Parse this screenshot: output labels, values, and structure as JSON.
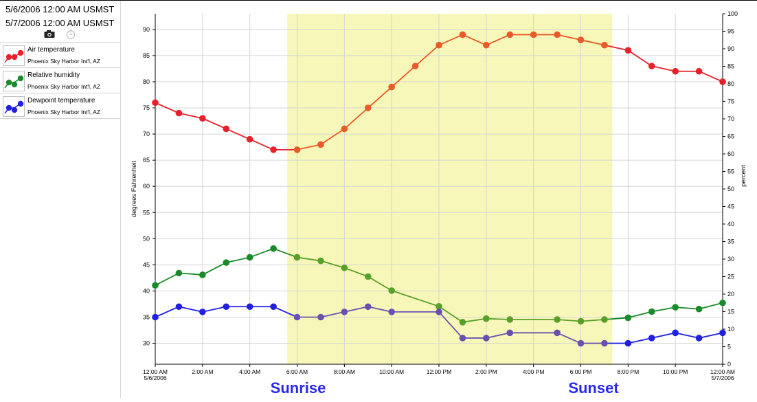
{
  "header": {
    "start_date": "5/6/2006 12:00 AM USMST",
    "end_date": "5/7/2006 12:00 AM USMST"
  },
  "controls": [
    {
      "icon": "camera-icon"
    },
    {
      "icon": "clock-icon"
    }
  ],
  "legend": [
    {
      "name": "Air temperature",
      "station": "Phoenix Sky Harbor Int'l, AZ",
      "color": "#e8202a"
    },
    {
      "name": "Relative humidity",
      "station": "Phoenix Sky Harbor Int'l, AZ",
      "color": "#1a8a2a"
    },
    {
      "name": "Dewpoint temperature",
      "station": "Phoenix Sky Harbor Int'l, AZ",
      "color": "#2020e0"
    }
  ],
  "annotations": {
    "sunrise": "Sunrise",
    "sunset": "Sunset",
    "color": "#2a2aee",
    "daylight_shade": "#f7f7b9"
  },
  "chart_data": {
    "type": "line",
    "x": [
      "12:00 AM",
      "1:00 AM",
      "2:00 AM",
      "3:00 AM",
      "4:00 AM",
      "5:00 AM",
      "6:00 AM",
      "7:00 AM",
      "8:00 AM",
      "9:00 AM",
      "10:00 AM",
      "11:00 AM",
      "12:00 PM",
      "1:00 PM",
      "2:00 PM",
      "3:00 PM",
      "4:00 PM",
      "5:00 PM",
      "6:00 PM",
      "7:00 PM",
      "8:00 PM",
      "9:00 PM",
      "10:00 PM",
      "11:00 PM",
      "12:00 AM"
    ],
    "x_tick_labels": [
      [
        "12:00 AM",
        "5/6/2006"
      ],
      [
        "2:00 AM"
      ],
      [
        "4:00 AM"
      ],
      [
        "6:00 AM"
      ],
      [
        "8:00 AM"
      ],
      [
        "10:00 AM"
      ],
      [
        "12:00 PM"
      ],
      [
        "2:00 PM"
      ],
      [
        "4:00 PM"
      ],
      [
        "6:00 PM"
      ],
      [
        "8:00 PM"
      ],
      [
        "10:00 PM"
      ],
      [
        "12:00 AM",
        "5/7/2006"
      ]
    ],
    "daylight_span": [
      "5:35 AM",
      "7:20 PM"
    ],
    "y_left": {
      "label": "degrees Fahrenheit",
      "lim": [
        26,
        93
      ],
      "ticks": [
        30,
        35,
        40,
        45,
        50,
        55,
        60,
        65,
        70,
        75,
        80,
        85,
        90
      ]
    },
    "y_right": {
      "label": "percent",
      "lim": [
        0,
        100
      ],
      "ticks": [
        0,
        5,
        10,
        15,
        20,
        25,
        30,
        35,
        40,
        45,
        50,
        55,
        60,
        65,
        70,
        75,
        80,
        85,
        90,
        95,
        100
      ]
    },
    "series": [
      {
        "name": "Air temperature",
        "axis": "left",
        "color": "#e8202a",
        "color_in_daylight": "#e85a28",
        "values": [
          76,
          74,
          73,
          71,
          69,
          67,
          67,
          68,
          71,
          75,
          79,
          83,
          87,
          89,
          87,
          89,
          89,
          89,
          88,
          87,
          86,
          83,
          82,
          82,
          80
        ]
      },
      {
        "name": "Relative humidity",
        "axis": "right",
        "color": "#1a8a2a",
        "color_in_daylight": "#58a028",
        "values": [
          22.5,
          26,
          25.5,
          29,
          30.5,
          33,
          30.5,
          29.5,
          27.5,
          25,
          21,
          null,
          16.5,
          12,
          13,
          12.75,
          null,
          12.75,
          12.25,
          12.75,
          13.25,
          15,
          16.25,
          15.75,
          17.5
        ]
      },
      {
        "name": "Dewpoint temperature",
        "axis": "left",
        "color": "#2020e0",
        "color_in_daylight": "#6850b0",
        "values": [
          35,
          37,
          36,
          37,
          37,
          37,
          35,
          35,
          36,
          37,
          36,
          null,
          36,
          31,
          31,
          32,
          null,
          32,
          30,
          30,
          30,
          31,
          32,
          31,
          32
        ]
      }
    ]
  }
}
